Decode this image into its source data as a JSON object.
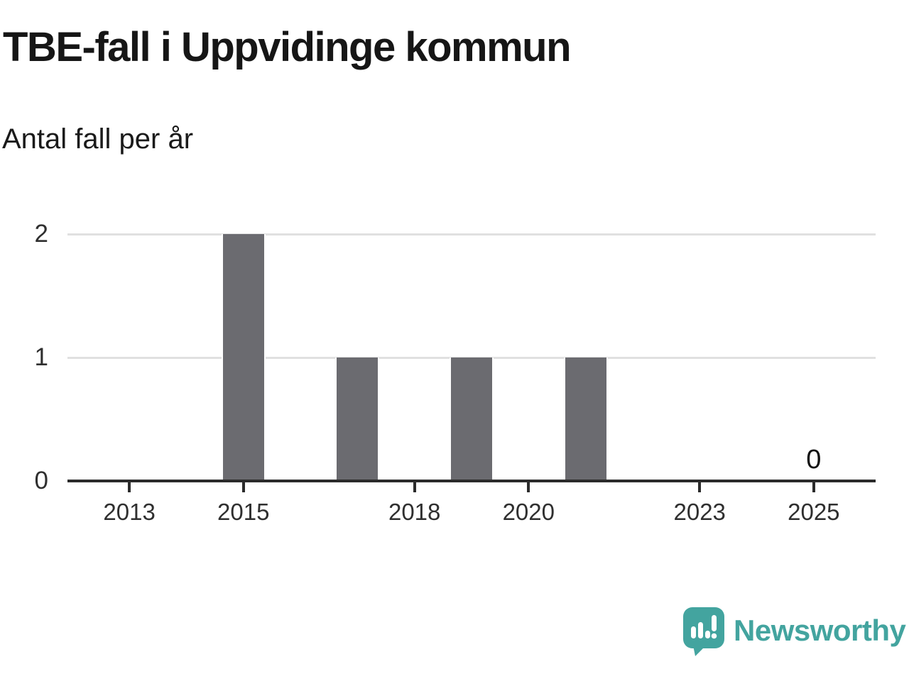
{
  "header": {
    "title": "TBE-fall i Uppvidinge kommun",
    "subtitle": "Antal fall per år"
  },
  "chart_data": {
    "type": "bar",
    "title": "TBE-fall i Uppvidinge kommun",
    "subtitle": "Antal fall per år",
    "xlabel": "",
    "ylabel": "Antal fall per år",
    "categories": [
      2013,
      2014,
      2015,
      2016,
      2017,
      2018,
      2019,
      2020,
      2021,
      2022,
      2023,
      2024,
      2025
    ],
    "values": [
      0,
      0,
      2,
      0,
      1,
      0,
      1,
      0,
      1,
      0,
      0,
      0,
      0
    ],
    "ylim": [
      0,
      2
    ],
    "yticks": [
      0,
      1,
      2
    ],
    "xticks": [
      2013,
      2015,
      2018,
      2020,
      2023,
      2025
    ],
    "grid": "horizontal",
    "legend": "none",
    "last_value_label": {
      "year": 2025,
      "text": "0"
    },
    "colors": {
      "bar": "#6b6b70",
      "gridline": "#e0e0e0",
      "axis": "#2b2b2b",
      "tick_label": "#2f2f2f",
      "value_label": "#111111"
    }
  },
  "branding": {
    "name": "Newsworthy",
    "color": "#43a49f",
    "icon": "newsworthy-logo-icon"
  }
}
